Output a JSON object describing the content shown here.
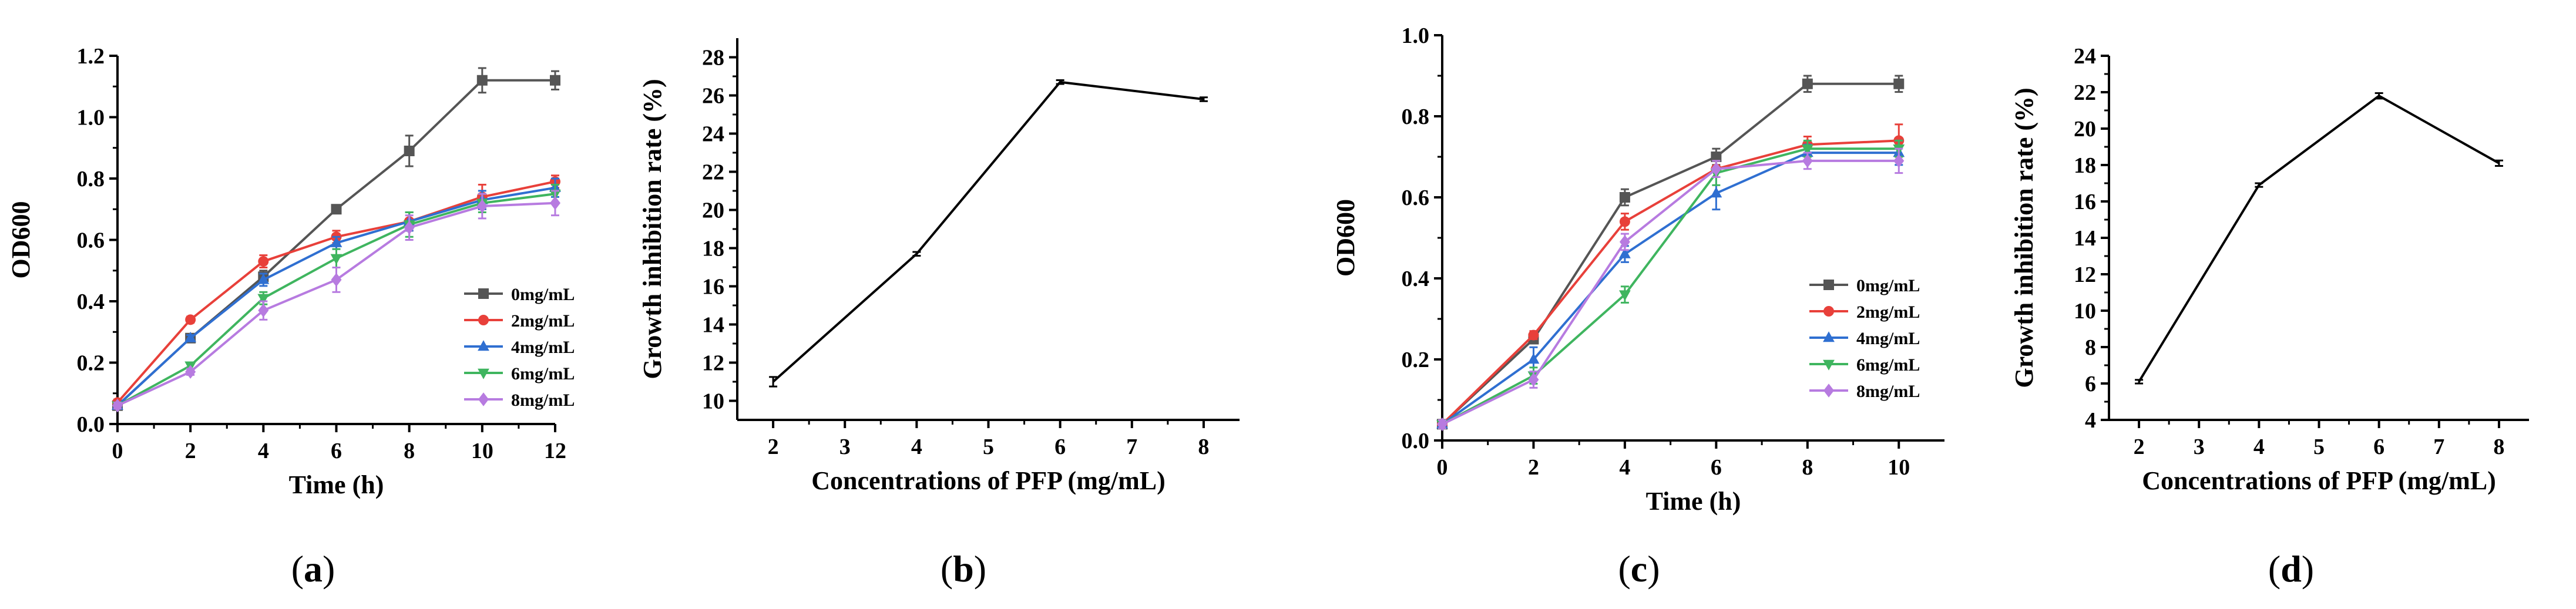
{
  "chart_data": [
    {
      "id": "a",
      "type": "line",
      "panel_label": "a",
      "xlabel": "Time (h)",
      "ylabel": "OD600",
      "xlim": [
        0,
        12
      ],
      "ylim": [
        0,
        1.2
      ],
      "xticks": [
        "0",
        "2",
        "4",
        "6",
        "8",
        "10",
        "12"
      ],
      "yticks": [
        "0.0",
        "0.2",
        "0.4",
        "0.6",
        "0.8",
        "1.0",
        "1.2"
      ],
      "legend": "bottom-right",
      "grid": false,
      "x": [
        0,
        2,
        4,
        6,
        8,
        10,
        12
      ],
      "series": [
        {
          "name": "0mg/mL",
          "color": "#555555",
          "marker": "square",
          "values": [
            0.06,
            0.28,
            0.48,
            0.7,
            0.89,
            1.12,
            1.12
          ],
          "errors": [
            0.01,
            0.01,
            0.02,
            0.01,
            0.05,
            0.04,
            0.03
          ]
        },
        {
          "name": "2mg/mL",
          "color": "#e8403a",
          "marker": "circle",
          "values": [
            0.07,
            0.34,
            0.53,
            0.61,
            0.66,
            0.74,
            0.79
          ],
          "errors": [
            0.01,
            0.01,
            0.02,
            0.02,
            0.03,
            0.04,
            0.02
          ]
        },
        {
          "name": "4mg/mL",
          "color": "#2f6fd1",
          "marker": "triangle-up",
          "values": [
            0.06,
            0.28,
            0.47,
            0.59,
            0.66,
            0.73,
            0.77
          ],
          "errors": [
            0.01,
            0.01,
            0.02,
            0.02,
            0.03,
            0.03,
            0.03
          ]
        },
        {
          "name": "6mg/mL",
          "color": "#3fb55f",
          "marker": "triangle-down",
          "values": [
            0.06,
            0.19,
            0.41,
            0.54,
            0.65,
            0.72,
            0.75
          ],
          "errors": [
            0.01,
            0.01,
            0.02,
            0.03,
            0.04,
            0.03,
            0.03
          ]
        },
        {
          "name": "8mg/mL",
          "color": "#b77be0",
          "marker": "diamond",
          "values": [
            0.06,
            0.17,
            0.37,
            0.47,
            0.64,
            0.71,
            0.72
          ],
          "errors": [
            0.01,
            0.01,
            0.03,
            0.04,
            0.04,
            0.04,
            0.04
          ]
        }
      ]
    },
    {
      "id": "b",
      "type": "line",
      "panel_label": "b",
      "xlabel": "Concentrations of PFP (mg/mL)",
      "ylabel": "Growth inhibition rate (%)",
      "xlim": [
        1.5,
        8.5
      ],
      "ylim": [
        9,
        29
      ],
      "xticks": [
        "2",
        "3",
        "4",
        "5",
        "6",
        "7",
        "8"
      ],
      "yticks": [
        "10",
        "12",
        "14",
        "16",
        "18",
        "20",
        "22",
        "24",
        "26",
        "28"
      ],
      "grid": false,
      "x": [
        2,
        4,
        6,
        8
      ],
      "series": [
        {
          "color": "#000000",
          "values": [
            11.0,
            17.7,
            26.7,
            25.8
          ],
          "errors": [
            0.25,
            0.1,
            0.1,
            0.1
          ]
        }
      ]
    },
    {
      "id": "c",
      "type": "line",
      "panel_label": "c",
      "xlabel": "Time (h)",
      "ylabel": "OD600",
      "xlim": [
        0,
        11
      ],
      "ylim": [
        0,
        1.0
      ],
      "xticks": [
        "0",
        "2",
        "4",
        "6",
        "8",
        "10"
      ],
      "yticks": [
        "0.0",
        "0.2",
        "0.4",
        "0.6",
        "0.8",
        "1.0"
      ],
      "legend": "bottom-right",
      "grid": false,
      "x": [
        0,
        2,
        4,
        6,
        8,
        10
      ],
      "series": [
        {
          "name": "0mg/mL",
          "color": "#555555",
          "marker": "square",
          "values": [
            0.04,
            0.25,
            0.6,
            0.7,
            0.88,
            0.88
          ],
          "errors": [
            0.01,
            0.01,
            0.02,
            0.02,
            0.02,
            0.02
          ]
        },
        {
          "name": "2mg/mL",
          "color": "#e8403a",
          "marker": "circle",
          "values": [
            0.04,
            0.26,
            0.54,
            0.67,
            0.73,
            0.74
          ],
          "errors": [
            0.01,
            0.01,
            0.02,
            0.02,
            0.02,
            0.04
          ]
        },
        {
          "name": "4mg/mL",
          "color": "#2f6fd1",
          "marker": "triangle-up",
          "values": [
            0.04,
            0.2,
            0.46,
            0.61,
            0.71,
            0.71
          ],
          "errors": [
            0.01,
            0.03,
            0.02,
            0.04,
            0.02,
            0.03
          ]
        },
        {
          "name": "6mg/mL",
          "color": "#3fb55f",
          "marker": "triangle-down",
          "values": [
            0.04,
            0.16,
            0.36,
            0.66,
            0.72,
            0.72
          ],
          "errors": [
            0.01,
            0.02,
            0.02,
            0.03,
            0.02,
            0.02
          ]
        },
        {
          "name": "8mg/mL",
          "color": "#b77be0",
          "marker": "diamond",
          "values": [
            0.04,
            0.15,
            0.49,
            0.67,
            0.69,
            0.69
          ],
          "errors": [
            0.01,
            0.02,
            0.02,
            0.02,
            0.02,
            0.03
          ]
        }
      ]
    },
    {
      "id": "d",
      "type": "line",
      "panel_label": "d",
      "xlabel": "Concentrations of PFP (mg/mL)",
      "ylabel": "Growth inhibition rate (%)",
      "xlim": [
        1.5,
        8.5
      ],
      "ylim": [
        4,
        24
      ],
      "xticks": [
        "2",
        "3",
        "4",
        "5",
        "6",
        "7",
        "8"
      ],
      "yticks": [
        "4",
        "6",
        "8",
        "10",
        "12",
        "14",
        "16",
        "18",
        "20",
        "22",
        "24"
      ],
      "grid": false,
      "x": [
        2,
        4,
        6,
        8
      ],
      "series": [
        {
          "color": "#000000",
          "values": [
            6.1,
            16.9,
            21.8,
            18.1
          ],
          "errors": [
            0.1,
            0.1,
            0.15,
            0.15
          ]
        }
      ]
    }
  ]
}
